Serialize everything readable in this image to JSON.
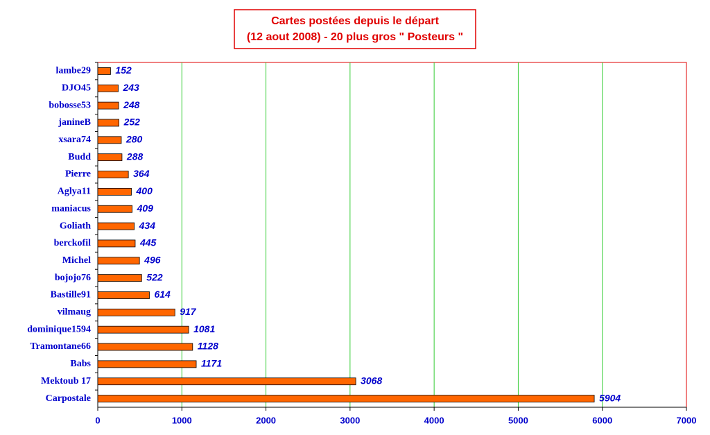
{
  "chart_data": {
    "type": "bar",
    "orientation": "horizontal",
    "title": [
      "Cartes postées depuis le départ",
      "(12 aout 2008) - 20 plus gros \" Posteurs \""
    ],
    "categories": [
      "lambe29",
      "DJO45",
      "bobosse53",
      "janineB",
      "xsara74",
      "Budd",
      "Pierre",
      "Aglya11",
      "maniacus",
      "Goliath",
      "berckofil",
      "Michel",
      "bojojo76",
      "Bastille91",
      "vilmaug",
      "dominique1594",
      "Tramontane66",
      "Babs",
      "Mektoub 17",
      "Carpostale"
    ],
    "values": [
      152,
      243,
      248,
      252,
      280,
      288,
      364,
      400,
      409,
      434,
      445,
      496,
      522,
      614,
      917,
      1081,
      1128,
      1171,
      3068,
      5904
    ],
    "color": "#ff6600",
    "grid_color": "#33cc33",
    "xlim": [
      0,
      7000
    ],
    "xticks": [
      0,
      1000,
      2000,
      3000,
      4000,
      5000,
      6000,
      7000
    ],
    "grid": true
  }
}
